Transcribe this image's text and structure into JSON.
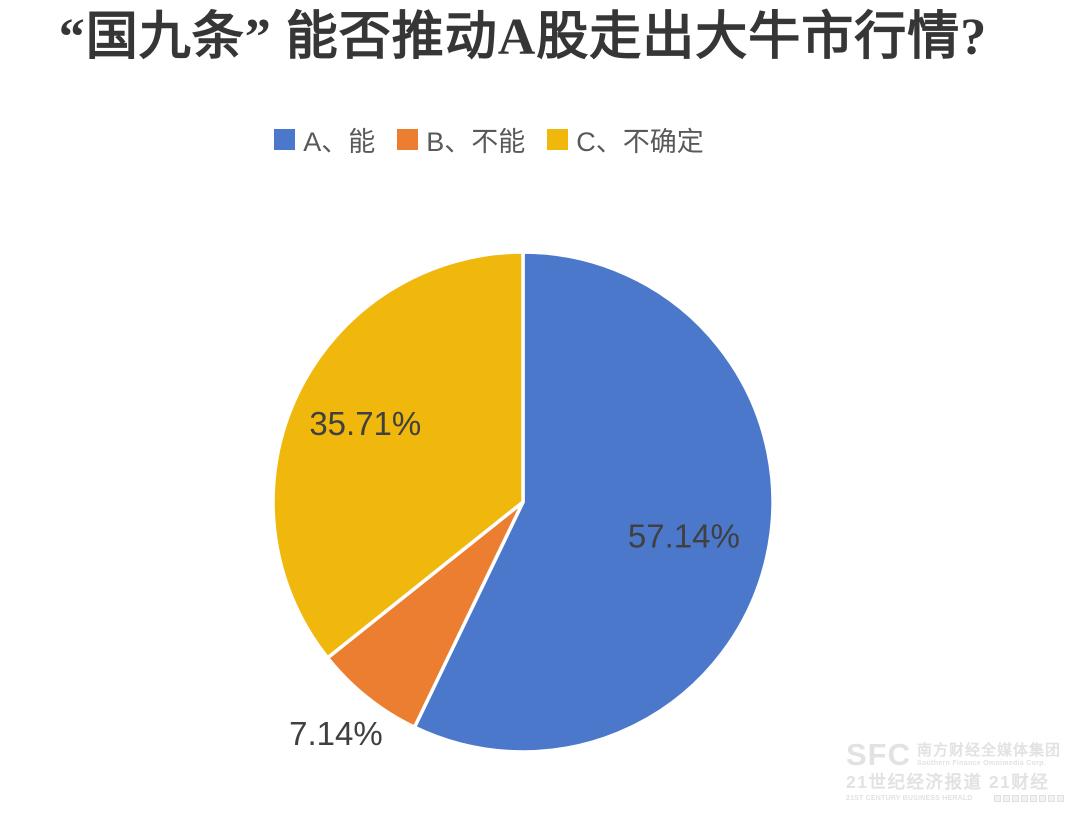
{
  "chart_data": {
    "type": "pie",
    "title": "“国九条” 能否推动A股走出大牛市行情?",
    "categories": [
      "A、能",
      "B、不能",
      "C、不确定"
    ],
    "values": [
      57.14,
      7.14,
      35.71
    ],
    "slices": [
      {
        "label": "A、能",
        "value": 57.14,
        "display": "57.14%",
        "color": "#4B78CA"
      },
      {
        "label": "B、不能",
        "value": 7.14,
        "display": "7.14%",
        "color": "#EC7E31"
      },
      {
        "label": "C、不确定",
        "value": 35.71,
        "display": "35.71%",
        "color": "#F0B70D"
      }
    ],
    "start_angle_deg": 0,
    "direction": "clockwise",
    "legend_position": "top",
    "label_color": "#404040",
    "legend_text_color": "#595959",
    "background": "#ffffff"
  },
  "watermark": {
    "logo_text": "SFC",
    "org_cn": "南方财经全媒体集团",
    "org_en": "Southern Finance Omnimedia Corp.",
    "line2_cn": "21世纪经济报道 21财经",
    "line3_en": "21ST CENTURY BUSINESS HERALD"
  }
}
